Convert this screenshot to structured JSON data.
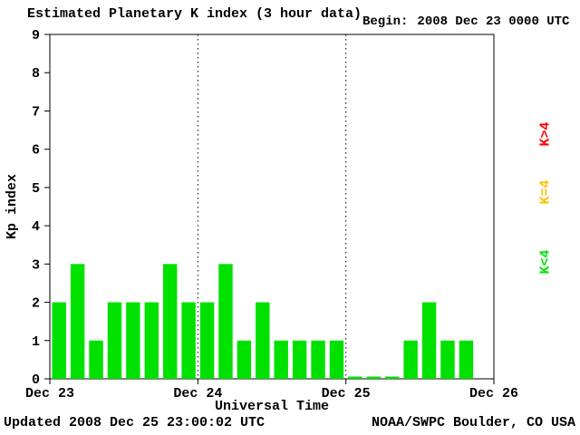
{
  "header": {
    "title": "Estimated Planetary K index (3 hour data)",
    "begin_label": "Begin:",
    "begin_value": "2008 Dec 23 0000 UTC"
  },
  "legend": [
    {
      "label": "K>4",
      "color": "#ff0000"
    },
    {
      "label": "K=4",
      "color": "#ffc000"
    },
    {
      "label": "K<4",
      "color": "#00e100"
    }
  ],
  "footer": {
    "updated": "Updated 2008 Dec 25 23:00:02 UTC",
    "source": "NOAA/SWPC Boulder, CO USA"
  },
  "chart_data": {
    "type": "bar",
    "title": "Estimated Planetary K index (3 hour data)",
    "xlabel": "Universal Time",
    "ylabel": "Kp index",
    "ylim": [
      0,
      9
    ],
    "yticks": [
      0,
      1,
      2,
      3,
      4,
      5,
      6,
      7,
      8,
      9
    ],
    "x_day_labels": [
      "Dec 23",
      "Dec 24",
      "Dec 25",
      "Dec 26"
    ],
    "days": 3,
    "slots_per_day": 8,
    "bar_color": "#00e100",
    "grid": "dotted-day-boundaries",
    "legend_position": "right-rotated",
    "series": [
      {
        "name": "Dec 23",
        "values": [
          2,
          3,
          1,
          2,
          2,
          2,
          3,
          2
        ]
      },
      {
        "name": "Dec 24",
        "values": [
          2,
          3,
          1,
          2,
          1,
          1,
          1,
          1
        ]
      },
      {
        "name": "Dec 25",
        "values": [
          0,
          0,
          0,
          1,
          2,
          1,
          1
        ]
      }
    ],
    "values": [
      2,
      3,
      1,
      2,
      2,
      2,
      3,
      2,
      2,
      3,
      1,
      2,
      1,
      1,
      1,
      1,
      0,
      0,
      0,
      1,
      2,
      1,
      1
    ]
  }
}
